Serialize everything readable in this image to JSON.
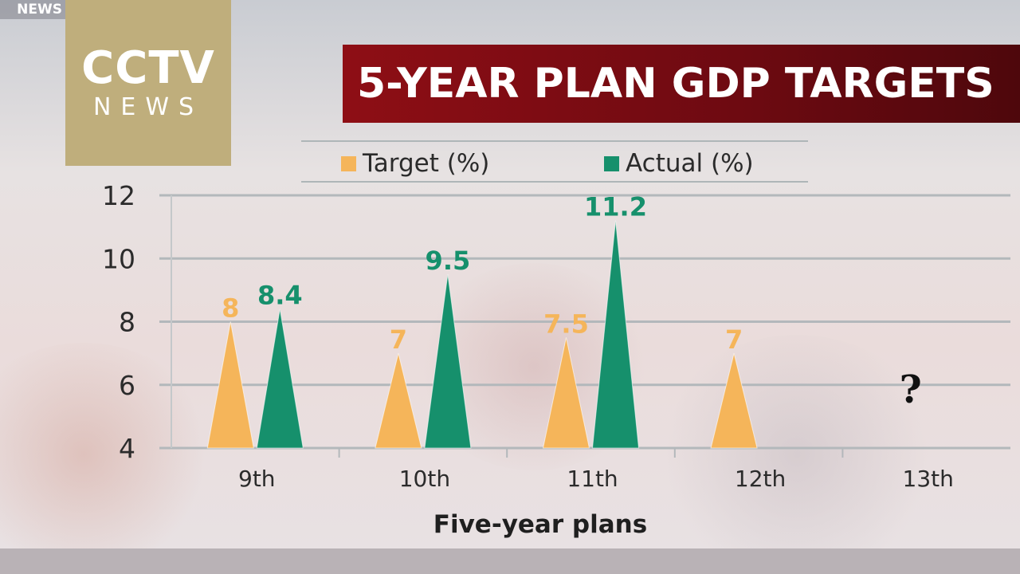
{
  "watermark": {
    "corner_tag": "NEWS",
    "logo_main": "CCTV",
    "logo_sub": "NEWS"
  },
  "title": "5-YEAR PLAN GDP TARGETS",
  "colors": {
    "target": "#f5b55a",
    "actual": "#16906c",
    "title_bg": "#7a0c12",
    "logo_bg": "#bfae7c"
  },
  "chart_data": {
    "type": "bar",
    "title": "5-YEAR PLAN GDP TARGETS",
    "xlabel": "Five-year plans",
    "ylabel": "",
    "categories": [
      "9th",
      "10th",
      "11th",
      "12th",
      "13th"
    ],
    "series": [
      {
        "name": "Target (%)",
        "values": [
          8,
          7,
          7.5,
          7,
          null
        ],
        "labels": [
          "8",
          "7",
          "7.5",
          "7",
          ""
        ]
      },
      {
        "name": "Actual (%)",
        "values": [
          8.4,
          9.5,
          11.2,
          null,
          null
        ],
        "labels": [
          "8.4",
          "9.5",
          "11.2",
          "",
          ""
        ]
      }
    ],
    "annotations": [
      {
        "category": "13th",
        "text": "?"
      }
    ],
    "ylim": [
      4,
      12
    ],
    "yticks": [
      4,
      6,
      8,
      10,
      12
    ],
    "ytick_labels": [
      "4",
      "6",
      "8",
      "10",
      "12"
    ],
    "grid": true,
    "legend": "top"
  }
}
